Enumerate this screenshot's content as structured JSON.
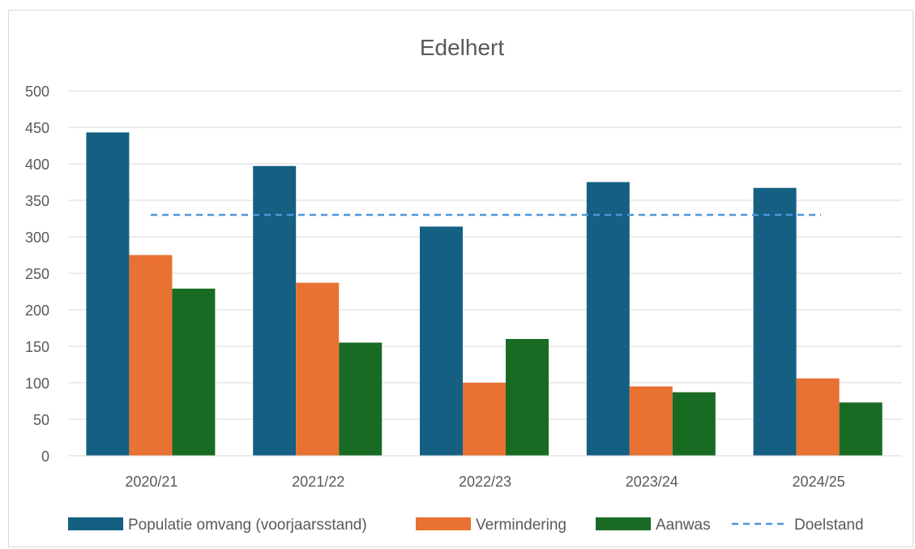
{
  "chart_data": {
    "type": "bar",
    "title": "Edelhert",
    "categories": [
      "2020/21",
      "2021/22",
      "2022/23",
      "2023/24",
      "2024/25"
    ],
    "series": [
      {
        "name": "Populatie omvang (voorjaarsstand)",
        "values": [
          443,
          397,
          314,
          375,
          367
        ]
      },
      {
        "name": "Vermindering",
        "values": [
          275,
          237,
          100,
          95,
          106
        ]
      },
      {
        "name": "Aanwas",
        "values": [
          229,
          155,
          160,
          87,
          73
        ]
      }
    ],
    "reference_line": {
      "name": "Doelstand",
      "value": 330,
      "style": "dashed"
    },
    "ylim": [
      0,
      500
    ],
    "yticks": [
      "0",
      "50",
      "100",
      "150",
      "200",
      "250",
      "300",
      "350",
      "400",
      "450",
      "500"
    ],
    "grid": true,
    "legend_position": "bottom",
    "colors": {
      "series": [
        "#156082",
        "#E97132",
        "#196B24"
      ],
      "reference_line": "#4E95D9",
      "grid": "#d9d9d9",
      "text": "#595959"
    }
  }
}
